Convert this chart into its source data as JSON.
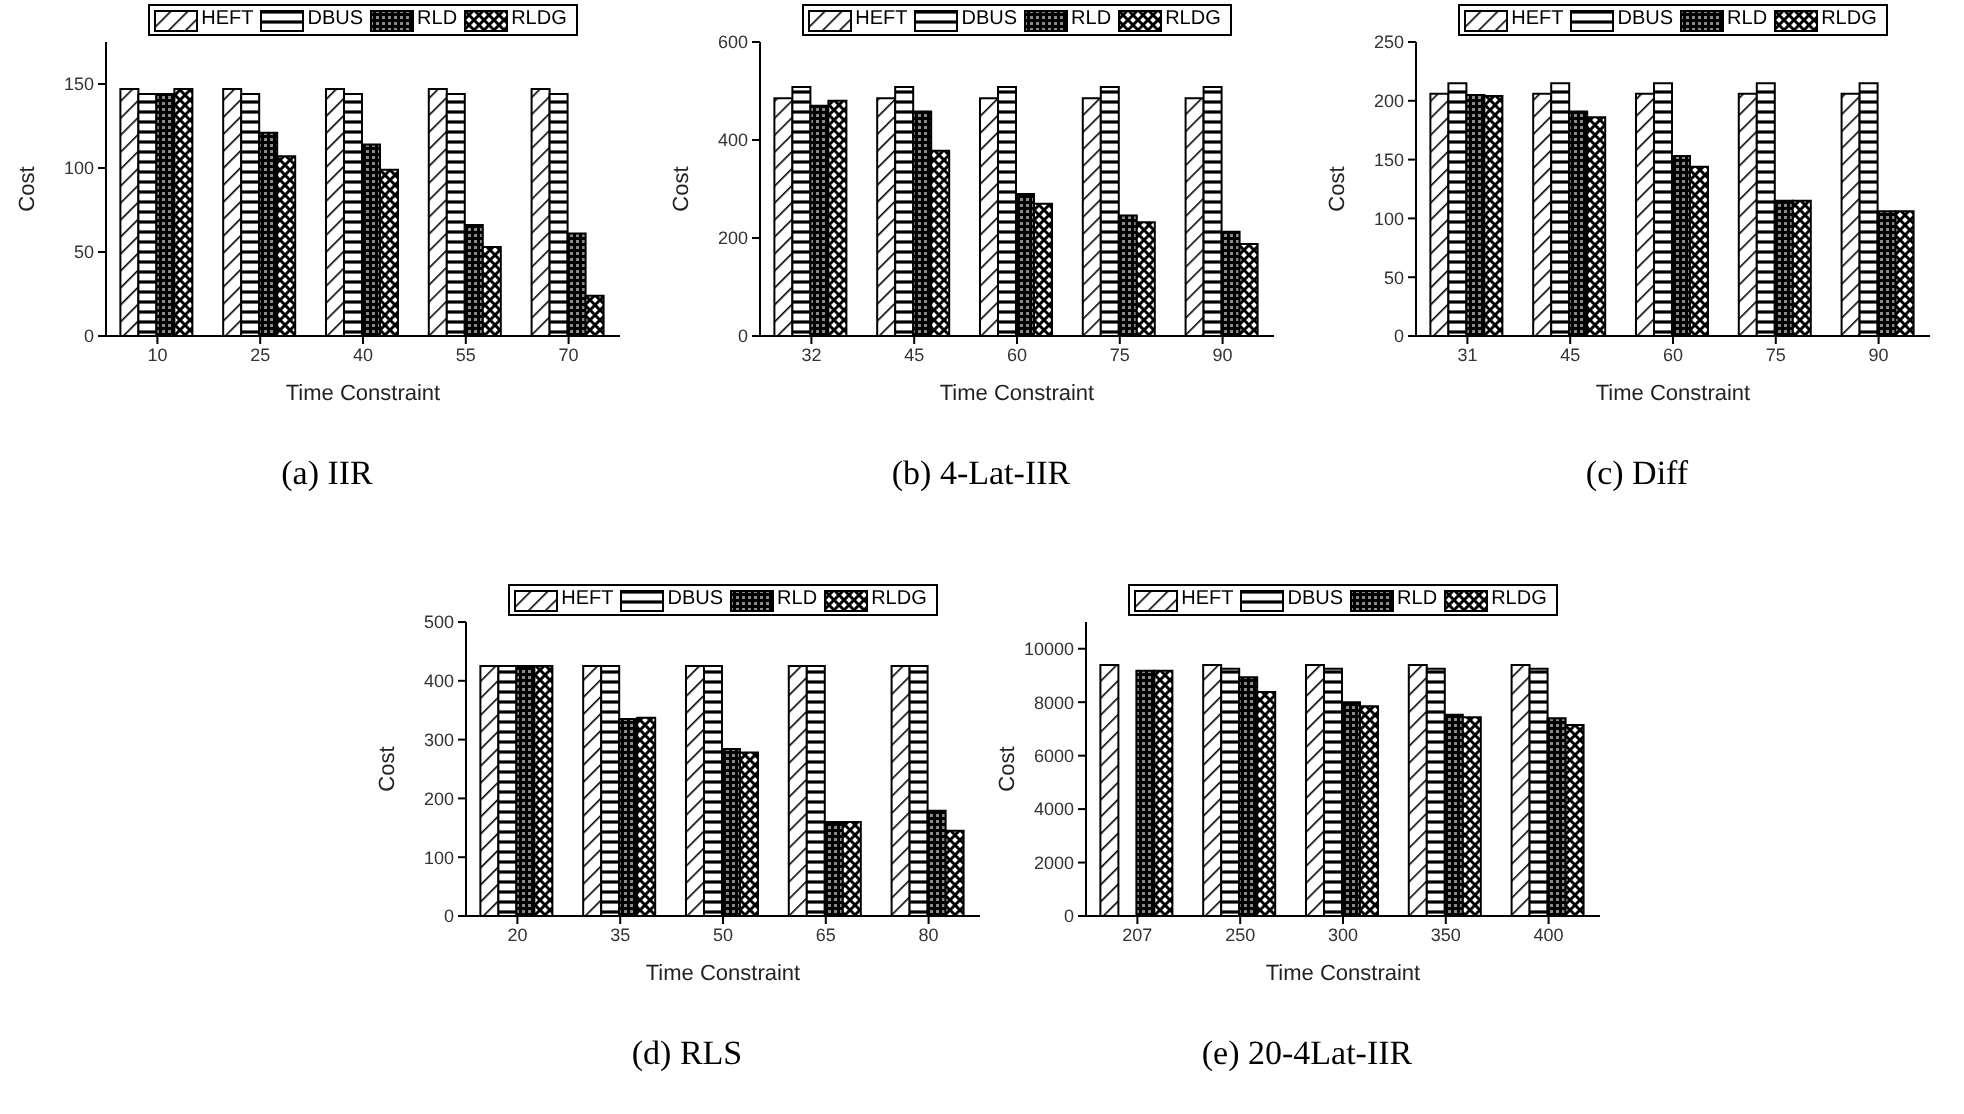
{
  "chart_data": [
    {
      "type": "bar",
      "title": "(a) IIR",
      "xlabel": "Time Constraint",
      "ylabel": "Cost",
      "categories": [
        "10",
        "25",
        "40",
        "55",
        "70"
      ],
      "ylim": [
        0,
        175
      ],
      "yticks": [
        0,
        50,
        100,
        150
      ],
      "legend": "top",
      "grid": false,
      "series": [
        {
          "name": "HEFT",
          "color": "#000000",
          "values": [
            147,
            147,
            147,
            147,
            147
          ]
        },
        {
          "name": "DBUS",
          "color": "#000000",
          "values": [
            144,
            144,
            144,
            144,
            144
          ]
        },
        {
          "name": "RLD",
          "color": "#000000",
          "values": [
            144,
            121,
            114,
            66,
            61
          ]
        },
        {
          "name": "RLDG",
          "color": "#000000",
          "values": [
            147,
            107,
            99,
            53,
            24
          ]
        }
      ]
    },
    {
      "type": "bar",
      "title": "(b) 4-Lat-IIR",
      "xlabel": "Time Constraint",
      "ylabel": "Cost",
      "categories": [
        "32",
        "45",
        "60",
        "75",
        "90"
      ],
      "ylim": [
        0,
        600
      ],
      "yticks": [
        0,
        200,
        400,
        600
      ],
      "legend": "top",
      "grid": false,
      "series": [
        {
          "name": "HEFT",
          "color": "#000000",
          "values": [
            485,
            485,
            485,
            485,
            485
          ]
        },
        {
          "name": "DBUS",
          "color": "#000000",
          "values": [
            508,
            508,
            508,
            508,
            508
          ]
        },
        {
          "name": "RLD",
          "color": "#000000",
          "values": [
            470,
            458,
            290,
            246,
            213
          ]
        },
        {
          "name": "RLDG",
          "color": "#000000",
          "values": [
            480,
            378,
            270,
            232,
            188
          ]
        }
      ]
    },
    {
      "type": "bar",
      "title": "(c) Diff",
      "xlabel": "Time Constraint",
      "ylabel": "Cost",
      "categories": [
        "31",
        "45",
        "60",
        "75",
        "90"
      ],
      "ylim": [
        0,
        250
      ],
      "yticks": [
        0,
        50,
        100,
        150,
        200,
        250
      ],
      "legend": "top",
      "grid": false,
      "series": [
        {
          "name": "HEFT",
          "color": "#000000",
          "values": [
            206,
            206,
            206,
            206,
            206
          ]
        },
        {
          "name": "DBUS",
          "color": "#000000",
          "values": [
            215,
            215,
            215,
            215,
            215
          ]
        },
        {
          "name": "RLD",
          "color": "#000000",
          "values": [
            205,
            191,
            153,
            115,
            106
          ]
        },
        {
          "name": "RLDG",
          "color": "#000000",
          "values": [
            204,
            186,
            144,
            115,
            106
          ]
        }
      ]
    },
    {
      "type": "bar",
      "title": "(d) RLS",
      "xlabel": "Time Constraint",
      "ylabel": "Cost",
      "categories": [
        "20",
        "35",
        "50",
        "65",
        "80"
      ],
      "ylim": [
        0,
        500
      ],
      "yticks": [
        0,
        100,
        200,
        300,
        400,
        500
      ],
      "legend": "top",
      "grid": false,
      "series": [
        {
          "name": "HEFT",
          "color": "#000000",
          "values": [
            425,
            425,
            425,
            425,
            425
          ]
        },
        {
          "name": "DBUS",
          "color": "#000000",
          "values": [
            425,
            425,
            425,
            425,
            425
          ]
        },
        {
          "name": "RLD",
          "color": "#000000",
          "values": [
            425,
            335,
            284,
            160,
            179
          ]
        },
        {
          "name": "RLDG",
          "color": "#000000",
          "values": [
            425,
            337,
            278,
            160,
            145
          ]
        }
      ]
    },
    {
      "type": "bar",
      "title": "(e) 20-4Lat-IIR",
      "xlabel": "Time Constraint",
      "ylabel": "Cost",
      "categories": [
        "207",
        "250",
        "300",
        "350",
        "400"
      ],
      "ylim": [
        0,
        11000
      ],
      "yticks": [
        0,
        2000,
        4000,
        6000,
        8000,
        10000
      ],
      "legend": "top",
      "grid": false,
      "series": [
        {
          "name": "HEFT",
          "color": "#000000",
          "values": [
            9390,
            9390,
            9390,
            9390,
            9390
          ]
        },
        {
          "name": "DBUS",
          "color": "#000000",
          "values": [
            null,
            9250,
            9250,
            9250,
            9250
          ]
        },
        {
          "name": "RLD",
          "color": "#000000",
          "values": [
            9180,
            8930,
            8000,
            7530,
            7400
          ]
        },
        {
          "name": "RLDG",
          "color": "#000000",
          "values": [
            9180,
            8380,
            7850,
            7440,
            7150
          ]
        }
      ]
    }
  ]
}
